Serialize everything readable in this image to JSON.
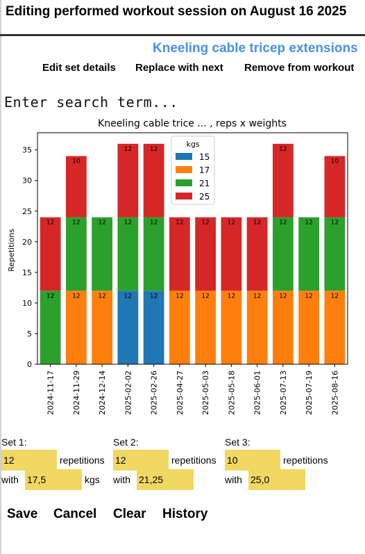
{
  "header": {
    "title": "Editing performed workout session on August 16 2025"
  },
  "exercise": {
    "name": "Kneeling cable tricep extensions"
  },
  "actions": {
    "edit": "Edit set details",
    "replace": "Replace with next",
    "remove": "Remove from workout"
  },
  "search": {
    "placeholder": "Enter search term..."
  },
  "chart_data": {
    "type": "bar",
    "stacked": true,
    "title": "Kneeling cable trice ... , reps x weights",
    "xlabel": "",
    "ylabel": "Repetitions",
    "ylim": [
      0,
      37.8
    ],
    "yticks": [
      0,
      5,
      10,
      15,
      20,
      25,
      30,
      35
    ],
    "legend": {
      "title": "kgs",
      "placement": "top-center"
    },
    "categories": [
      "2024-11-17",
      "2024-11-29",
      "2024-12-14",
      "2025-02-02",
      "2025-02-26",
      "2025-04-27",
      "2025-05-03",
      "2025-05-18",
      "2025-06-01",
      "2025-07-13",
      "2025-07-19",
      "2025-08-16"
    ],
    "series": [
      {
        "name": "15",
        "color": "#1f77b4",
        "values": [
          0,
          0,
          0,
          12,
          12,
          0,
          0,
          0,
          0,
          0,
          0,
          0
        ]
      },
      {
        "name": "17",
        "color": "#ff7f0e",
        "values": [
          0,
          12,
          12,
          0,
          0,
          12,
          12,
          12,
          12,
          12,
          12,
          12
        ]
      },
      {
        "name": "21",
        "color": "#2ca02c",
        "values": [
          12,
          12,
          12,
          12,
          12,
          0,
          0,
          0,
          0,
          12,
          12,
          12
        ]
      },
      {
        "name": "25",
        "color": "#d62728",
        "values": [
          12,
          10,
          0,
          12,
          12,
          12,
          12,
          12,
          12,
          12,
          0,
          10
        ]
      }
    ]
  },
  "sets": [
    {
      "label": "Set 1:",
      "reps": "12",
      "reps_unit": "repetitions",
      "with": "with",
      "weight": "17,5",
      "weight_unit": "kgs"
    },
    {
      "label": "Set 2:",
      "reps": "12",
      "reps_unit": "repetitions",
      "with": "with",
      "weight": "21,25",
      "weight_unit": ""
    },
    {
      "label": "Set 3:",
      "reps": "10",
      "reps_unit": "repetitions",
      "with": "with",
      "weight": "25,0",
      "weight_unit": ""
    }
  ],
  "buttons": {
    "save": "Save",
    "cancel": "Cancel",
    "clear": "Clear",
    "history": "History"
  }
}
